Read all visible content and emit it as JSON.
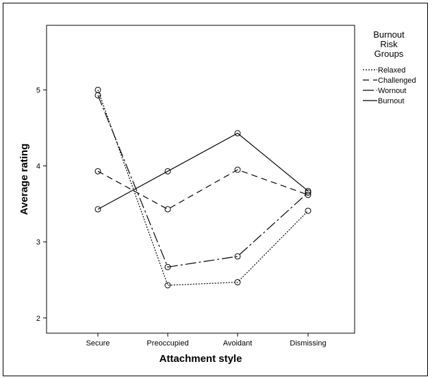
{
  "chart_data": {
    "type": "line",
    "xlabel": "Attachment style",
    "ylabel": "Average rating",
    "categories": [
      "Secure",
      "Preoccupied",
      "Avoidant",
      "Dismissing"
    ],
    "ylim": [
      1.8,
      5.85
    ],
    "yticks": [
      "2",
      "3",
      "4",
      "5"
    ],
    "grid": false,
    "markers": "open circle",
    "legend": {
      "position": "right",
      "title_lines": [
        "Burnout",
        "Risk",
        "Groups"
      ]
    },
    "series": [
      {
        "name": "Relaxed",
        "linestyle": "dotted",
        "values": [
          5.0,
          2.43,
          2.47,
          3.41
        ]
      },
      {
        "name": "Challenged",
        "linestyle": "dashed",
        "values": [
          3.93,
          3.43,
          3.95,
          3.62
        ]
      },
      {
        "name": "Wornout",
        "linestyle": "dash-dot",
        "values": [
          4.93,
          2.67,
          2.81,
          3.65
        ]
      },
      {
        "name": "Burnout",
        "linestyle": "solid",
        "values": [
          3.43,
          3.93,
          4.43,
          3.67
        ]
      }
    ]
  }
}
